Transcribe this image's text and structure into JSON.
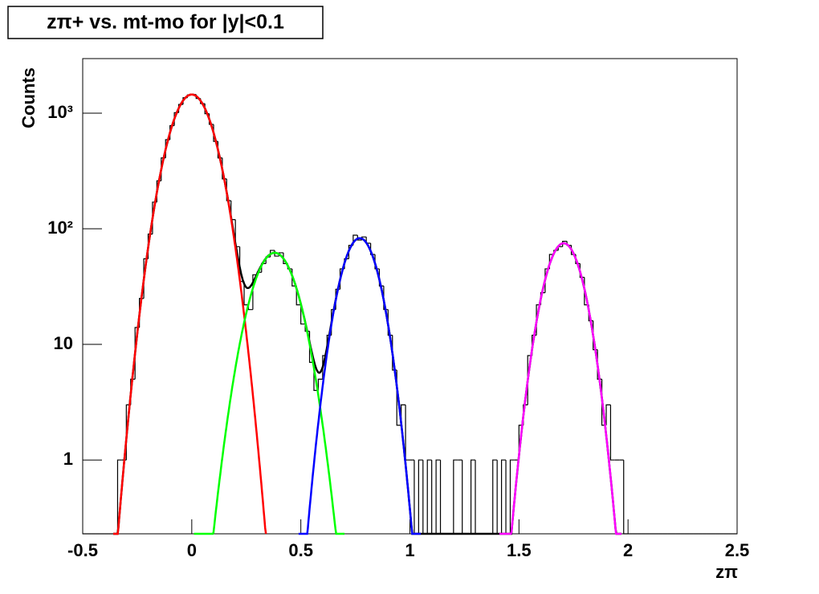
{
  "chart_data": {
    "type": "histogram",
    "title": "zπ+ vs. mt-mo for |y|<0.1",
    "x_label": "zπ",
    "y_label": "Counts",
    "log_y": true,
    "color": "#000000",
    "xlim": [
      -0.5,
      2.5
    ],
    "ylim": [
      0.23,
      2965
    ],
    "xticks": [
      -0.5,
      0,
      0.5,
      1,
      1.5,
      2,
      2.5
    ],
    "yticks": [
      1,
      10,
      {
        "value": 100,
        "label": "10²"
      },
      {
        "value": 1000,
        "label": "10³"
      }
    ],
    "bins": [
      -0.5,
      -0.48,
      -0.46,
      -0.44,
      -0.42,
      -0.4,
      -0.38,
      -0.36,
      -0.34,
      -0.32,
      -0.3,
      -0.28,
      -0.26,
      -0.24,
      -0.22,
      -0.2,
      -0.18,
      -0.16,
      -0.14,
      -0.12,
      -0.1,
      -0.08,
      -0.06,
      -0.04,
      -0.02,
      0,
      0.02,
      0.04,
      0.06,
      0.08,
      0.1,
      0.12,
      0.14,
      0.16,
      0.18,
      0.2,
      0.22,
      0.24,
      0.26,
      0.28,
      0.3,
      0.32,
      0.34,
      0.36,
      0.38,
      0.4,
      0.42,
      0.44,
      0.46,
      0.48,
      0.5,
      0.52,
      0.54,
      0.56,
      0.58,
      0.6,
      0.62,
      0.64,
      0.66,
      0.68,
      0.7,
      0.72,
      0.74,
      0.76,
      0.78,
      0.8,
      0.82,
      0.84,
      0.86,
      0.88,
      0.9,
      0.92,
      0.94,
      0.96,
      0.98,
      1,
      1.02,
      1.04,
      1.06,
      1.08,
      1.1,
      1.12,
      1.14,
      1.16,
      1.18,
      1.2,
      1.22,
      1.24,
      1.26,
      1.28,
      1.3,
      1.32,
      1.34,
      1.36,
      1.38,
      1.4,
      1.42,
      1.44,
      1.46,
      1.48,
      1.5,
      1.52,
      1.54,
      1.56,
      1.58,
      1.6,
      1.62,
      1.64,
      1.66,
      1.68,
      1.7,
      1.72,
      1.74,
      1.76,
      1.78,
      1.8,
      1.82,
      1.84,
      1.86,
      1.88,
      1.9,
      1.92,
      1.94,
      1.96,
      1.98,
      2,
      2.02,
      2.04,
      2.06,
      2.08,
      2.1,
      2.12,
      2.14,
      2.16,
      2.18,
      2.2,
      2.22,
      2.24,
      2.26,
      2.28,
      2.3,
      2.32,
      2.34,
      2.36,
      2.38,
      2.4,
      2.42,
      2.44,
      2.46,
      2.48,
      2.5
    ],
    "values": [
      0,
      0,
      0,
      0,
      0,
      0,
      0,
      0,
      1,
      1,
      3,
      5,
      14,
      25,
      55,
      90,
      170,
      260,
      410,
      590,
      780,
      1010,
      1190,
      1360,
      1440,
      1450,
      1340,
      1210,
      990,
      800,
      570,
      410,
      270,
      175,
      120,
      70,
      35,
      22,
      20,
      40,
      42,
      50,
      57,
      65,
      58,
      62,
      50,
      45,
      32,
      22,
      15,
      13,
      7,
      4,
      5,
      8,
      12,
      20,
      30,
      45,
      55,
      72,
      88,
      80,
      85,
      75,
      60,
      45,
      32,
      20,
      12,
      6,
      2,
      3,
      1,
      1,
      0,
      1,
      0,
      1,
      0,
      1,
      0,
      0,
      0,
      1,
      1,
      0,
      0,
      1,
      0,
      0,
      0,
      0,
      1,
      0,
      1,
      0,
      1,
      1,
      2,
      3,
      8,
      12,
      22,
      28,
      45,
      60,
      65,
      70,
      78,
      72,
      60,
      50,
      38,
      22,
      16,
      9,
      5,
      2,
      3,
      1,
      1,
      1,
      0,
      0,
      0,
      0,
      0,
      0,
      0,
      0,
      0,
      0,
      0,
      0,
      0,
      0,
      0,
      0,
      0,
      0,
      0,
      0,
      0,
      0,
      0,
      0,
      0,
      0
    ],
    "fit_total_color": "#000000",
    "fits": [
      {
        "color": "#ff0000",
        "constant": 1450,
        "mean": 0,
        "sigma": 0.081,
        "range": [
          -0.36,
          0.34
        ]
      },
      {
        "color": "#00ff00",
        "constant": 62,
        "mean": 0.38,
        "sigma": 0.084,
        "range": [
          0.01,
          0.7
        ]
      },
      {
        "color": "#0000ff",
        "constant": 83,
        "mean": 0.77,
        "sigma": 0.07,
        "range": [
          0.49,
          1.05
        ]
      },
      {
        "color": "#ff00ff",
        "constant": 75,
        "mean": 1.705,
        "sigma": 0.0705,
        "range": [
          1.41,
          1.97
        ]
      }
    ]
  }
}
